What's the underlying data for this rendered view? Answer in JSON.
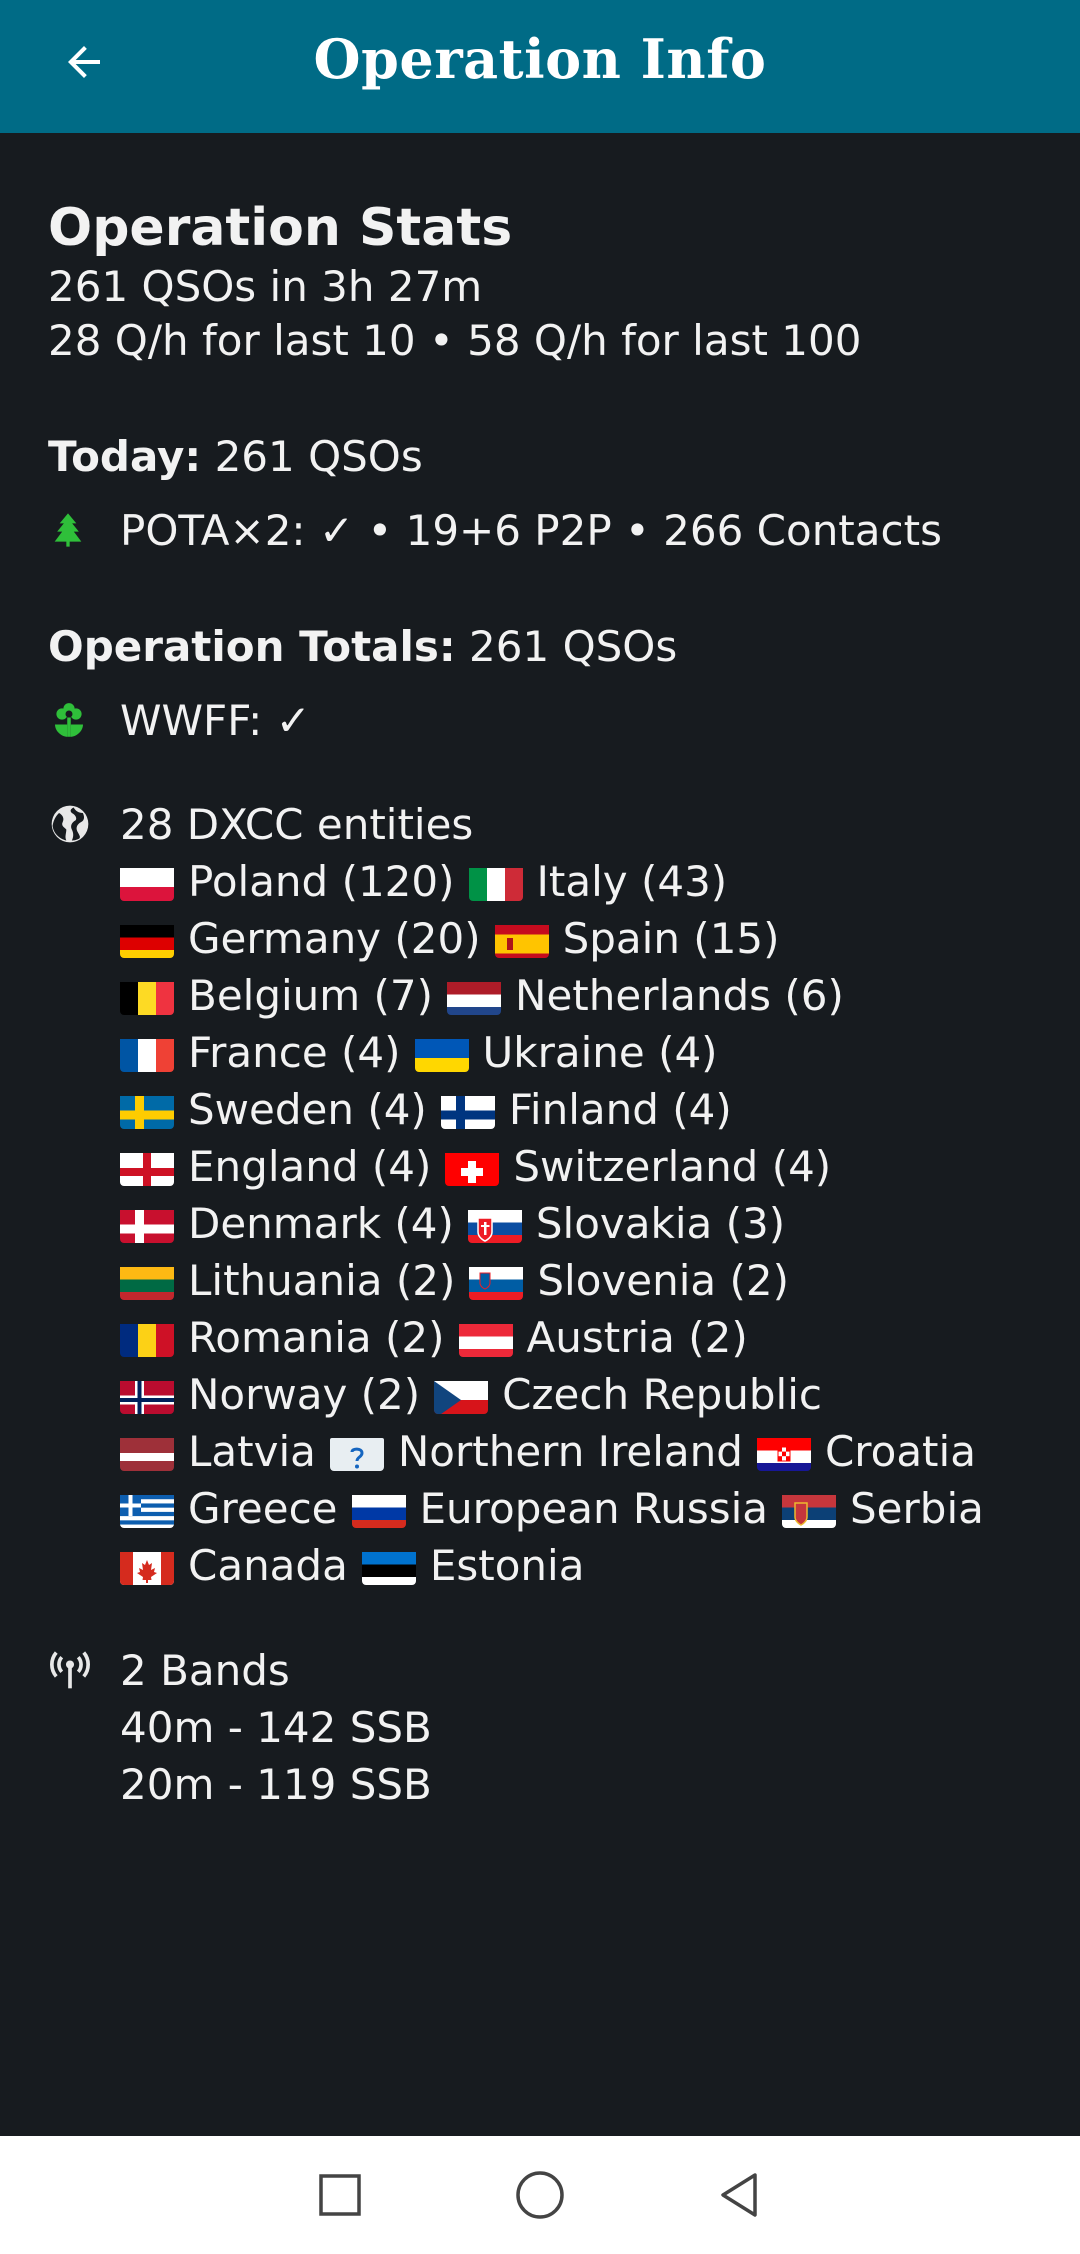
{
  "app_bar": {
    "title": "Operation Info",
    "back_icon": "arrow-left-icon",
    "color": "#006b86"
  },
  "stats": {
    "title": "Operation Stats",
    "summary": "261 QSOs in 3h 27m",
    "rate": "28 Q/h for last 10 • 58 Q/h for last 100"
  },
  "today": {
    "label": "Today:",
    "value": " 261 QSOs",
    "pota_line": "POTA×2: ✓ • 19+6 P2P • 266 Contacts",
    "pota_icon": "tree-icon"
  },
  "totals": {
    "label": "Operation Totals:",
    "value": " 261 QSOs",
    "wwff_line": "WWFF: ✓",
    "wwff_icon": "flower-icon"
  },
  "dxcc": {
    "icon": "globe-icon",
    "count_label": "28 DXCC entities",
    "lines": [
      [
        {
          "code": "pl",
          "label": "Poland (120)"
        },
        {
          "code": "it",
          "label": "Italy (43)"
        }
      ],
      [
        {
          "code": "de",
          "label": "Germany (20)"
        },
        {
          "code": "es",
          "label": "Spain (15)"
        }
      ],
      [
        {
          "code": "be",
          "label": "Belgium (7)"
        },
        {
          "code": "nl",
          "label": "Netherlands (6)"
        }
      ],
      [
        {
          "code": "fr",
          "label": "France (4)"
        },
        {
          "code": "ua",
          "label": "Ukraine (4)"
        }
      ],
      [
        {
          "code": "se",
          "label": "Sweden (4)"
        },
        {
          "code": "fi",
          "label": "Finland (4)"
        }
      ],
      [
        {
          "code": "en",
          "label": "England (4)"
        },
        {
          "code": "ch",
          "label": "Switzerland (4)"
        }
      ],
      [
        {
          "code": "dk",
          "label": "Denmark (4)"
        },
        {
          "code": "sk",
          "label": "Slovakia (3)"
        }
      ],
      [
        {
          "code": "lt",
          "label": "Lithuania (2)"
        },
        {
          "code": "si",
          "label": "Slovenia (2)"
        }
      ],
      [
        {
          "code": "ro",
          "label": "Romania (2)"
        },
        {
          "code": "at",
          "label": "Austria (2)"
        }
      ],
      [
        {
          "code": "no",
          "label": "Norway (2)"
        },
        {
          "code": "cz",
          "label": "Czech Republic"
        }
      ],
      [
        {
          "code": "lv",
          "label": "Latvia"
        },
        {
          "code": "unknown",
          "label": "Northern Ireland"
        },
        {
          "code": "hr",
          "label": "Croatia"
        }
      ],
      [
        {
          "code": "gr",
          "label": "Greece"
        },
        {
          "code": "ru",
          "label": "European Russia"
        },
        {
          "code": "rs",
          "label": "Serbia"
        }
      ],
      [
        {
          "code": "ca",
          "label": "Canada"
        },
        {
          "code": "ee",
          "label": "Estonia"
        }
      ]
    ]
  },
  "bands": {
    "icon": "antenna-icon",
    "count_label": "2 Bands",
    "items": [
      "40m - 142 SSB",
      "20m - 119 SSB"
    ]
  },
  "nav_bar": {
    "recents_icon": "square-icon",
    "home_icon": "circle-icon",
    "back_icon": "triangle-back-icon"
  },
  "colors": {
    "background": "#171b1f",
    "accent_green": "#2fbf3a"
  }
}
